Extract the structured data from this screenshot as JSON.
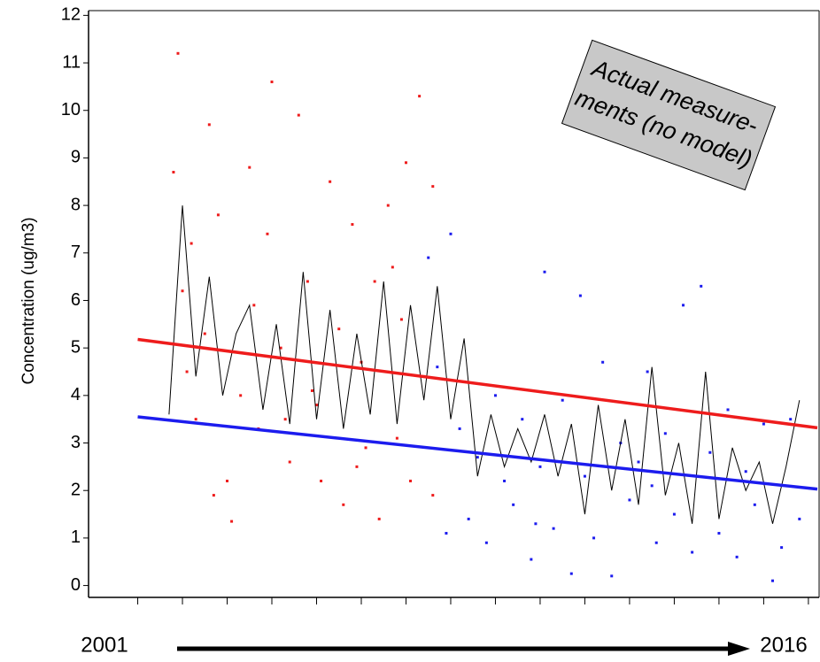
{
  "chart_data": {
    "type": "scatter",
    "y_label": "Concentration  (ug/m3)",
    "annotation": [
      "Actual measure-",
      "ments (no model)"
    ],
    "x_start_label": "2001",
    "x_end_label": "2016",
    "xlim": [
      1999.9,
      2016.2
    ],
    "ylim": [
      -0.25,
      12.1
    ],
    "xticks": [
      2001,
      2002,
      2003,
      2004,
      2005,
      2006,
      2007,
      2008,
      2009,
      2010,
      2011,
      2012,
      2013,
      2014,
      2015,
      2016
    ],
    "yticks": [
      0,
      1,
      2,
      3,
      4,
      5,
      6,
      7,
      8,
      9,
      10,
      11,
      12
    ],
    "series": [
      {
        "mode": "markers",
        "color": "#ee1c1c",
        "x": [
          2001.8,
          2001.9,
          2002.0,
          2002.1,
          2002.3,
          2002.5,
          2002.6,
          2002.8,
          2003.0,
          2003.1,
          2003.3,
          2003.5,
          2003.7,
          2003.9,
          2004.0,
          2004.2,
          2004.4,
          2004.6,
          2004.8,
          2005.0,
          2005.1,
          2005.3,
          2005.5,
          2005.6,
          2005.8,
          2006.0,
          2006.1,
          2006.3,
          2006.4,
          2006.6,
          2006.8,
          2006.9,
          2007.0,
          2007.1,
          2007.3,
          2007.4,
          2007.6,
          2007.6,
          2002.2,
          2003.6,
          2004.9,
          2005.9,
          2006.7,
          2002.7,
          2004.3
        ],
        "values": [
          8.7,
          11.2,
          6.2,
          4.5,
          3.5,
          5.3,
          9.7,
          7.8,
          2.2,
          1.35,
          4.0,
          8.8,
          3.3,
          7.4,
          10.6,
          5.0,
          2.6,
          9.9,
          6.4,
          3.8,
          2.2,
          8.5,
          5.4,
          1.7,
          7.6,
          4.7,
          2.9,
          6.4,
          1.4,
          8.0,
          3.1,
          5.6,
          8.9,
          2.2,
          10.3,
          4.4,
          1.9,
          8.4,
          7.2,
          5.9,
          4.1,
          2.5,
          6.7,
          1.9,
          3.5
        ]
      },
      {
        "mode": "markers",
        "color": "#1c1cee",
        "x": [
          2007.5,
          2007.7,
          2007.9,
          2008.0,
          2008.2,
          2008.4,
          2008.6,
          2008.8,
          2009.0,
          2009.2,
          2009.4,
          2009.6,
          2009.8,
          2010.0,
          2010.1,
          2010.3,
          2010.5,
          2010.7,
          2010.9,
          2011.0,
          2011.2,
          2011.4,
          2011.6,
          2011.8,
          2012.0,
          2012.2,
          2012.4,
          2012.6,
          2012.8,
          2013.0,
          2013.2,
          2013.4,
          2013.6,
          2013.8,
          2014.0,
          2014.2,
          2014.4,
          2014.6,
          2014.8,
          2015.0,
          2015.2,
          2015.4,
          2015.6,
          2015.8,
          2012.5,
          2009.9
        ],
        "values": [
          6.9,
          4.6,
          1.1,
          7.4,
          3.3,
          1.4,
          2.7,
          0.9,
          4.0,
          2.2,
          1.7,
          3.5,
          0.55,
          2.5,
          6.6,
          1.2,
          3.9,
          0.25,
          6.1,
          2.3,
          1.0,
          4.7,
          0.2,
          3.0,
          1.8,
          2.6,
          4.5,
          0.9,
          3.2,
          1.5,
          5.9,
          0.7,
          6.3,
          2.8,
          1.1,
          3.7,
          0.6,
          2.4,
          1.7,
          3.4,
          0.1,
          0.8,
          3.5,
          1.4,
          2.1,
          1.3
        ]
      },
      {
        "mode": "line",
        "color": "#000000",
        "x": [
          2001.7,
          2002.0,
          2002.3,
          2002.6,
          2002.9,
          2003.2,
          2003.5,
          2003.8,
          2004.1,
          2004.4,
          2004.7,
          2005.0,
          2005.3,
          2005.6,
          2005.9,
          2006.2,
          2006.5,
          2006.8,
          2007.1,
          2007.4,
          2007.7,
          2008.0,
          2008.3,
          2008.6,
          2008.9,
          2009.2,
          2009.5,
          2009.8,
          2010.1,
          2010.4,
          2010.7,
          2011.0,
          2011.3,
          2011.6,
          2011.9,
          2012.2,
          2012.5,
          2012.8,
          2013.1,
          2013.4,
          2013.7,
          2014.0,
          2014.3,
          2014.6,
          2014.9,
          2015.2,
          2015.5,
          2015.8
        ],
        "values": [
          3.6,
          8.0,
          4.4,
          6.5,
          4.0,
          5.3,
          5.9,
          3.7,
          5.5,
          3.4,
          6.6,
          3.5,
          5.8,
          3.3,
          5.3,
          3.6,
          6.4,
          3.4,
          5.9,
          3.9,
          6.3,
          3.5,
          5.2,
          2.3,
          3.6,
          2.5,
          3.3,
          2.6,
          3.6,
          2.3,
          3.4,
          1.5,
          3.8,
          2.0,
          3.5,
          1.7,
          4.6,
          1.9,
          3.0,
          1.3,
          4.5,
          1.4,
          2.9,
          2.0,
          2.6,
          1.3,
          2.5,
          3.9
        ]
      },
      {
        "mode": "trend",
        "color": "#ee1c1c",
        "x": [
          2001,
          2016.2
        ],
        "values": [
          5.18,
          3.32
        ]
      },
      {
        "mode": "trend",
        "color": "#1c1cee",
        "x": [
          2001,
          2016.2
        ],
        "values": [
          3.55,
          2.03
        ]
      }
    ]
  }
}
